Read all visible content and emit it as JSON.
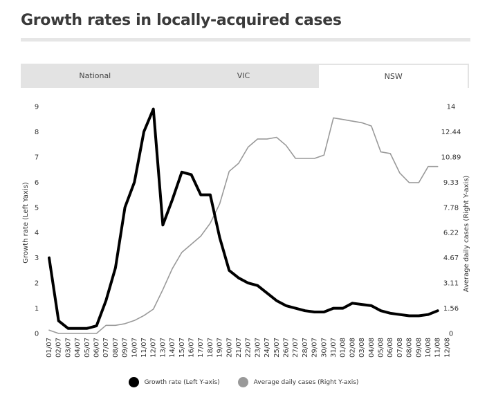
{
  "page": {
    "title": "Growth rates in locally-acquired cases"
  },
  "tabs": [
    {
      "label": "National",
      "active": false
    },
    {
      "label": "VIC",
      "active": false
    },
    {
      "label": "NSW",
      "active": true
    }
  ],
  "chart_data": {
    "type": "line",
    "title": "Growth rates in locally-acquired cases",
    "x": [
      "01/07",
      "02/07",
      "03/07",
      "04/07",
      "05/07",
      "06/07",
      "07/07",
      "08/07",
      "09/07",
      "10/07",
      "11/07",
      "12/07",
      "13/07",
      "14/07",
      "15/07",
      "16/07",
      "17/07",
      "18/07",
      "19/07",
      "20/07",
      "21/07",
      "22/07",
      "23/07",
      "24/07",
      "25/07",
      "26/07",
      "27/07",
      "28/07",
      "29/07",
      "30/07",
      "31/07",
      "01/08",
      "02/08",
      "03/08",
      "04/08",
      "05/08",
      "06/08",
      "07/08",
      "08/08",
      "09/08",
      "10/08",
      "11/08",
      "12/08"
    ],
    "ylabel_left": "Growth rate (Left Yaxis)",
    "ylabel_right": "Average daily cases (Right Y-axis)",
    "ylim_left": [
      0,
      9
    ],
    "ylim_right": [
      0,
      14
    ],
    "yticks_left": [
      "0",
      "1",
      "2",
      "3",
      "4",
      "5",
      "6",
      "7",
      "8",
      "9"
    ],
    "yticks_right": [
      "0",
      "1.56",
      "3.11",
      "4.67",
      "6.22",
      "7.78",
      "9.33",
      "10.89",
      "12.44",
      "14"
    ],
    "series": [
      {
        "name": "Growth rate (Left Y-axis)",
        "axis": "left",
        "color": "#000000",
        "values": [
          3.0,
          0.5,
          0.2,
          0.2,
          0.2,
          0.3,
          1.3,
          2.6,
          5.0,
          6.0,
          8.0,
          8.9,
          4.3,
          5.3,
          6.4,
          6.3,
          5.5,
          5.5,
          3.8,
          2.5,
          2.2,
          2.0,
          1.9,
          1.6,
          1.3,
          1.1,
          1.0,
          0.9,
          0.85,
          0.85,
          1.0,
          1.0,
          1.2,
          1.15,
          1.1,
          0.9,
          0.8,
          0.75,
          0.7,
          0.7,
          0.75,
          0.9,
          null
        ]
      },
      {
        "name": "Average daily cases (Right Y-axis)",
        "axis": "right",
        "color": "#999999",
        "values": [
          0.2,
          0.0,
          0.0,
          0.0,
          0.0,
          0.0,
          0.5,
          0.5,
          0.6,
          0.8,
          1.1,
          1.5,
          2.7,
          4.0,
          5.0,
          5.5,
          6.0,
          6.8,
          8.0,
          10.0,
          10.5,
          11.5,
          12.0,
          12.0,
          12.1,
          11.6,
          10.8,
          10.8,
          10.8,
          11.0,
          13.3,
          13.2,
          13.1,
          13.0,
          12.8,
          11.2,
          11.1,
          9.9,
          9.3,
          9.3,
          10.3,
          10.3,
          null
        ]
      }
    ],
    "legend_position": "bottom"
  },
  "legend": [
    {
      "label": "Growth rate (Left Y-axis)",
      "color": "#000000"
    },
    {
      "label": "Average daily cases (Right Y-axis)",
      "color": "#999999"
    }
  ]
}
